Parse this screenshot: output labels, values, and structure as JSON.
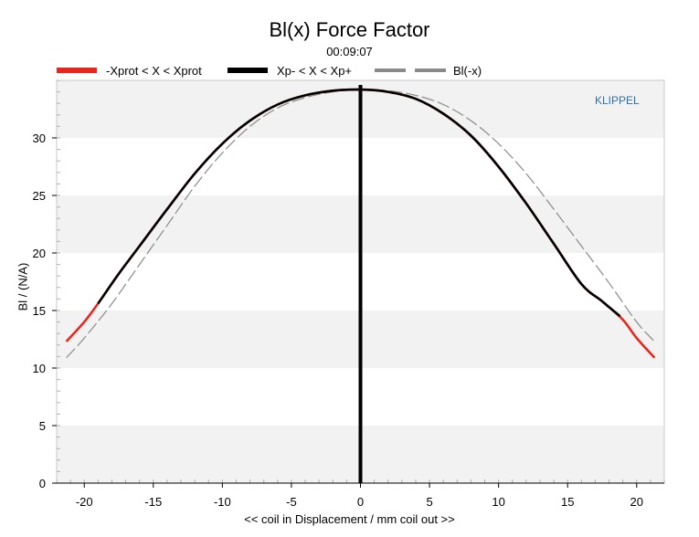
{
  "chart_data": {
    "type": "line",
    "title": "Bl(x) Force Factor",
    "subtitle": "00:09:07",
    "xlabel": "<< coil in Displacement / mm coil out >>",
    "ylabel": "Bl / (N/A)",
    "watermark": "KLIPPEL",
    "xlim": [
      -22,
      22
    ],
    "ylim": [
      0,
      35
    ],
    "xticks": [
      -20,
      -15,
      -10,
      -5,
      0,
      5,
      10,
      15,
      20
    ],
    "yticks": [
      0,
      5,
      10,
      15,
      20,
      25,
      30
    ],
    "grid": "horizontal-bands",
    "legend_position": "top",
    "legend": [
      {
        "label": "-Xprot < X < Xprot",
        "color": "#e8261f",
        "style": "solid"
      },
      {
        "label": "Xp- < X < Xp+",
        "color": "#000000",
        "style": "solid"
      },
      {
        "label": "Bl(-x)",
        "color": "#8a8a8a",
        "style": "dashed"
      }
    ],
    "rest_position_marker": {
      "x": 0,
      "color": "#000000"
    },
    "series": [
      {
        "name": "-Xprot < X < Xprot",
        "color": "#e8261f",
        "x": [
          -21.3,
          -20,
          -19,
          -17.5,
          -16,
          -14,
          -12,
          -10,
          -8,
          -6,
          -4,
          -2,
          0,
          2,
          4,
          6,
          8,
          10,
          12,
          14,
          16,
          17.5,
          19,
          20,
          21.3
        ],
        "y": [
          12.3,
          14.0,
          15.6,
          18.2,
          20.6,
          23.8,
          26.9,
          29.5,
          31.5,
          32.9,
          33.7,
          34.1,
          34.2,
          34.0,
          33.4,
          32.1,
          30.2,
          27.5,
          24.3,
          20.8,
          17.3,
          15.8,
          14.2,
          12.6,
          10.9
        ]
      },
      {
        "name": "Xp- < X < Xp+",
        "color": "#000000",
        "x": [
          -19,
          -17.5,
          -16,
          -14,
          -12,
          -10,
          -8,
          -6,
          -4,
          -2,
          0,
          2,
          4,
          6,
          8,
          10,
          12,
          14,
          16,
          17.5,
          18.8
        ],
        "y": [
          15.6,
          18.2,
          20.6,
          23.8,
          26.9,
          29.5,
          31.5,
          32.9,
          33.7,
          34.1,
          34.2,
          34.0,
          33.4,
          32.1,
          30.2,
          27.5,
          24.3,
          20.8,
          17.3,
          15.8,
          14.5
        ]
      },
      {
        "name": "Bl(-x)",
        "color": "#8a8a8a",
        "x": [
          -21.3,
          -20,
          -18,
          -16,
          -14,
          -12,
          -10,
          -8,
          -6,
          -4,
          -2,
          0,
          2,
          4,
          6,
          8,
          10,
          12,
          14,
          16,
          18,
          20,
          21.3
        ],
        "y": [
          10.9,
          12.6,
          15.6,
          19.0,
          22.4,
          25.8,
          28.7,
          31.0,
          32.6,
          33.5,
          34.0,
          34.2,
          34.1,
          33.7,
          32.9,
          31.5,
          29.5,
          26.9,
          23.8,
          20.6,
          17.4,
          14.0,
          12.3
        ]
      }
    ]
  }
}
